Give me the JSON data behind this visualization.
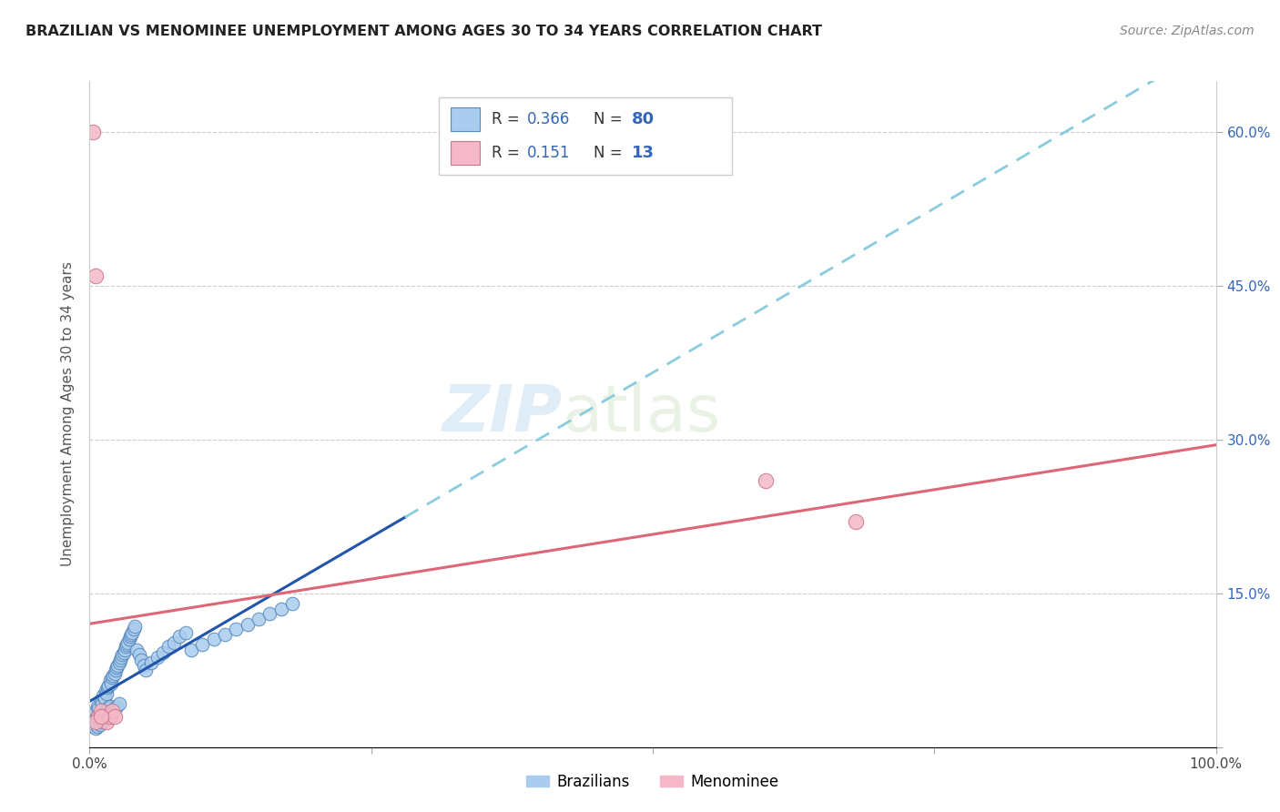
{
  "title": "BRAZILIAN VS MENOMINEE UNEMPLOYMENT AMONG AGES 30 TO 34 YEARS CORRELATION CHART",
  "source": "Source: ZipAtlas.com",
  "ylabel": "Unemployment Among Ages 30 to 34 years",
  "xlim": [
    0.0,
    1.0
  ],
  "ylim": [
    0.0,
    0.65
  ],
  "legend_R_blue": "0.366",
  "legend_N_blue": "80",
  "legend_R_pink": "0.151",
  "legend_N_pink": "13",
  "legend_label_blue": "Brazilians",
  "legend_label_pink": "Menominee",
  "blue_color": "#aaccee",
  "blue_edge": "#5588bb",
  "blue_line_color": "#2255aa",
  "pink_color": "#f4b8c8",
  "pink_edge": "#cc7788",
  "pink_line_color": "#dd6677",
  "dashed_line_color": "#88ccdd",
  "watermark_zip": "ZIP",
  "watermark_atlas": "atlas",
  "blue_scatter_x": [
    0.003,
    0.004,
    0.005,
    0.006,
    0.007,
    0.008,
    0.009,
    0.01,
    0.011,
    0.012,
    0.013,
    0.014,
    0.015,
    0.016,
    0.017,
    0.018,
    0.019,
    0.02,
    0.021,
    0.022,
    0.023,
    0.024,
    0.025,
    0.026,
    0.027,
    0.028,
    0.029,
    0.03,
    0.031,
    0.032,
    0.033,
    0.034,
    0.035,
    0.036,
    0.037,
    0.038,
    0.039,
    0.04,
    0.042,
    0.044,
    0.046,
    0.048,
    0.05,
    0.055,
    0.06,
    0.065,
    0.07,
    0.075,
    0.08,
    0.085,
    0.003,
    0.004,
    0.005,
    0.006,
    0.007,
    0.008,
    0.009,
    0.01,
    0.011,
    0.012,
    0.013,
    0.014,
    0.015,
    0.016,
    0.017,
    0.018,
    0.02,
    0.022,
    0.024,
    0.026,
    0.09,
    0.1,
    0.11,
    0.12,
    0.13,
    0.14,
    0.15,
    0.16,
    0.17,
    0.18
  ],
  "blue_scatter_y": [
    0.03,
    0.025,
    0.035,
    0.028,
    0.04,
    0.038,
    0.032,
    0.045,
    0.042,
    0.05,
    0.048,
    0.055,
    0.052,
    0.058,
    0.06,
    0.065,
    0.062,
    0.068,
    0.07,
    0.072,
    0.075,
    0.078,
    0.08,
    0.082,
    0.085,
    0.088,
    0.09,
    0.092,
    0.095,
    0.098,
    0.1,
    0.102,
    0.105,
    0.108,
    0.11,
    0.112,
    0.115,
    0.118,
    0.095,
    0.09,
    0.085,
    0.08,
    0.075,
    0.082,
    0.088,
    0.092,
    0.098,
    0.102,
    0.108,
    0.112,
    0.02,
    0.022,
    0.018,
    0.025,
    0.02,
    0.028,
    0.022,
    0.03,
    0.025,
    0.032,
    0.028,
    0.035,
    0.03,
    0.038,
    0.032,
    0.04,
    0.035,
    0.038,
    0.04,
    0.042,
    0.095,
    0.1,
    0.105,
    0.11,
    0.115,
    0.12,
    0.125,
    0.13,
    0.135,
    0.14
  ],
  "pink_scatter_x": [
    0.003,
    0.005,
    0.008,
    0.01,
    0.012,
    0.015,
    0.018,
    0.02,
    0.022,
    0.6,
    0.68,
    0.005,
    0.01
  ],
  "pink_scatter_y": [
    0.6,
    0.46,
    0.03,
    0.035,
    0.03,
    0.025,
    0.03,
    0.035,
    0.03,
    0.26,
    0.22,
    0.025,
    0.03
  ]
}
